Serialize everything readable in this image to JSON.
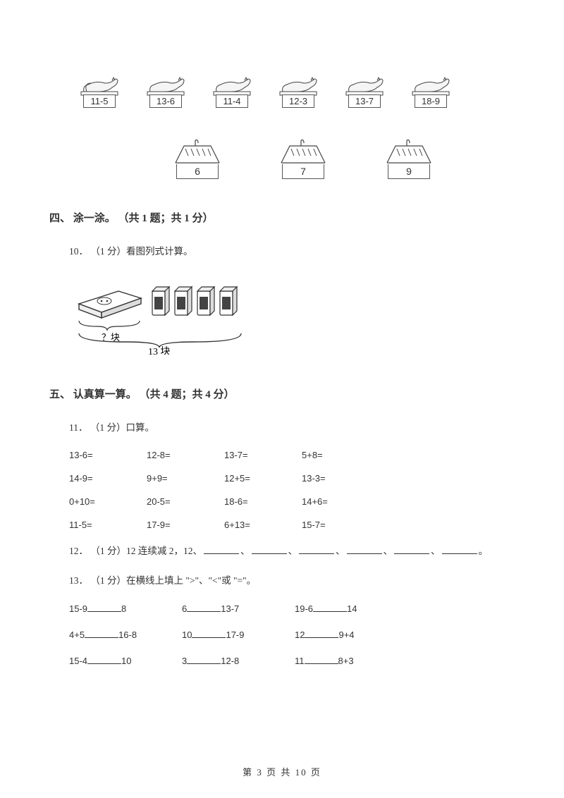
{
  "hens": [
    {
      "expr": "11-5"
    },
    {
      "expr": "13-6"
    },
    {
      "expr": "11-4"
    },
    {
      "expr": "12-3"
    },
    {
      "expr": "13-7"
    },
    {
      "expr": "18-9"
    }
  ],
  "houses": [
    {
      "num": "6"
    },
    {
      "num": "7"
    },
    {
      "num": "9"
    }
  ],
  "section4": {
    "title": "四、 涂一涂。 （共 1 题；共 1 分）"
  },
  "q10": {
    "label": "10． （1 分）看图列式计算。",
    "unknown": "？块",
    "total": "13 块"
  },
  "section5": {
    "title": "五、 认真算一算。 （共 4 题；共 4 分）"
  },
  "q11": {
    "label": "11． （1 分）口算。",
    "rows": [
      [
        "13-6=",
        "12-8=",
        "13-7=",
        "5+8="
      ],
      [
        "14-9=",
        "9+9=",
        "12+5=",
        "13-3="
      ],
      [
        "0+10=",
        "20-5=",
        "18-6=",
        "14+6="
      ],
      [
        "11-5=",
        "17-9=",
        "6+13=",
        "15-7="
      ]
    ]
  },
  "q12": {
    "prefix": "12． （1 分）12 连续减 2，12、",
    "suffix": "。"
  },
  "q13": {
    "label": "13． （1 分）在横线上填上 \">\"、\"<\"或 \"=\"。",
    "rows": [
      [
        [
          "15-9",
          "8"
        ],
        [
          "6",
          "13-7"
        ],
        [
          "19-6",
          "14"
        ]
      ],
      [
        [
          "4+5",
          "16-8"
        ],
        [
          "10",
          "17-9"
        ],
        [
          "12",
          "9+4"
        ]
      ],
      [
        [
          "15-4",
          "10"
        ],
        [
          "3",
          "12-8"
        ],
        [
          "11",
          "8+3"
        ]
      ]
    ]
  },
  "pager": "第 3 页 共 10 页"
}
